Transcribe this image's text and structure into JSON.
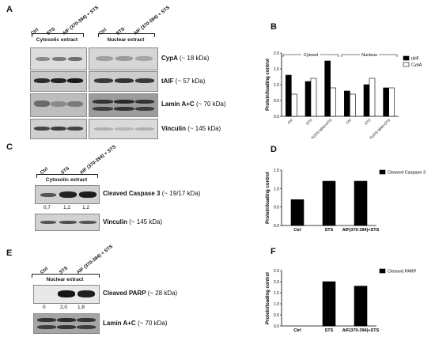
{
  "panels": {
    "A": "A",
    "B": "B",
    "C": "C",
    "D": "D",
    "E": "E",
    "F": "F"
  },
  "panelA": {
    "lanes_left": [
      "Ctrl",
      "STS",
      "AIF (370-394) + STS"
    ],
    "lanes_right": [
      "Ctrl",
      "STS",
      "AIF (370-394) + STS"
    ],
    "extract_left": "Cytosolic extract",
    "extract_right": "Nuclear extract",
    "blots": [
      {
        "name": "CypA",
        "kda": "(~ 18 kDa)"
      },
      {
        "name": "tAIF",
        "kda": "(~ 57 kDa)"
      },
      {
        "name": "Lamin A+C",
        "kda": "(~ 70 kDa)"
      },
      {
        "name": "Vinculin",
        "kda": "(~ 145 kDa)"
      }
    ]
  },
  "panelC": {
    "lanes": [
      "Ctrl",
      "STS",
      "AIF (370-394) + STS"
    ],
    "extract": "Cytosolic extract",
    "blots": [
      {
        "name": "Cleaved Caspase 3",
        "kda": "(~ 19/17 kDa)"
      },
      {
        "name": "Vinculin",
        "kda": "(~ 145 kDa)"
      }
    ],
    "quant": [
      "0,7",
      "1,2",
      "1,2"
    ]
  },
  "panelE": {
    "lanes": [
      "Ctrl",
      "STS",
      "AIF (370-394) + STS"
    ],
    "extract": "Nuclear extract",
    "blots": [
      {
        "name": "Cleaved PARP",
        "kda": "(~ 28 kDa)"
      },
      {
        "name": "Lamin A+C",
        "kda": "(~ 70 kDa)"
      }
    ],
    "quant": [
      "0",
      "2,0",
      "1,8"
    ]
  },
  "chart_data": [
    {
      "id": "B",
      "type": "bar",
      "ylabel": "Protein/loading control",
      "ylim": [
        0,
        2.0
      ],
      "yticks": [
        "0.0",
        "0.5",
        "1.0",
        "1.5",
        "2.0"
      ],
      "categories": [
        "Ctrl",
        "STS",
        "AIF(370-394)+STS",
        "Ctrl",
        "STS",
        "AIF(370-394)+STS"
      ],
      "groups": [
        {
          "label": "Cytosol",
          "span": [
            0,
            2
          ]
        },
        {
          "label": "Nucleus",
          "span": [
            3,
            5
          ]
        }
      ],
      "series": [
        {
          "name": "tAIF",
          "color": "#000000",
          "values": [
            1.3,
            1.1,
            1.75,
            0.8,
            1.0,
            0.9
          ]
        },
        {
          "name": "CypA",
          "color": "#ffffff",
          "values": [
            0.7,
            1.2,
            0.9,
            0.7,
            1.2,
            0.9
          ]
        }
      ],
      "legend": "top-right"
    },
    {
      "id": "D",
      "type": "bar",
      "ylabel": "Protein/loading control",
      "ylim": [
        0,
        1.5
      ],
      "yticks": [
        "0.0",
        "0.5",
        "1.0",
        "1.5"
      ],
      "categories": [
        "Ctrl",
        "STS",
        "AIF(370-394)+STS"
      ],
      "series": [
        {
          "name": "Cleaved Caspase 3",
          "color": "#000000",
          "values": [
            0.7,
            1.2,
            1.2
          ]
        }
      ],
      "legend": "top-right"
    },
    {
      "id": "F",
      "type": "bar",
      "ylabel": "Protein/loading control",
      "ylim": [
        0,
        2.5
      ],
      "yticks": [
        "0.0",
        "0.5",
        "1.0",
        "1.5",
        "2.0",
        "2.5"
      ],
      "categories": [
        "Ctrl",
        "STS",
        "AIF(370-394)+STS"
      ],
      "series": [
        {
          "name": "Cleaved PARP",
          "color": "#000000",
          "values": [
            0,
            2.0,
            1.8
          ]
        }
      ],
      "legend": "top-right"
    }
  ]
}
